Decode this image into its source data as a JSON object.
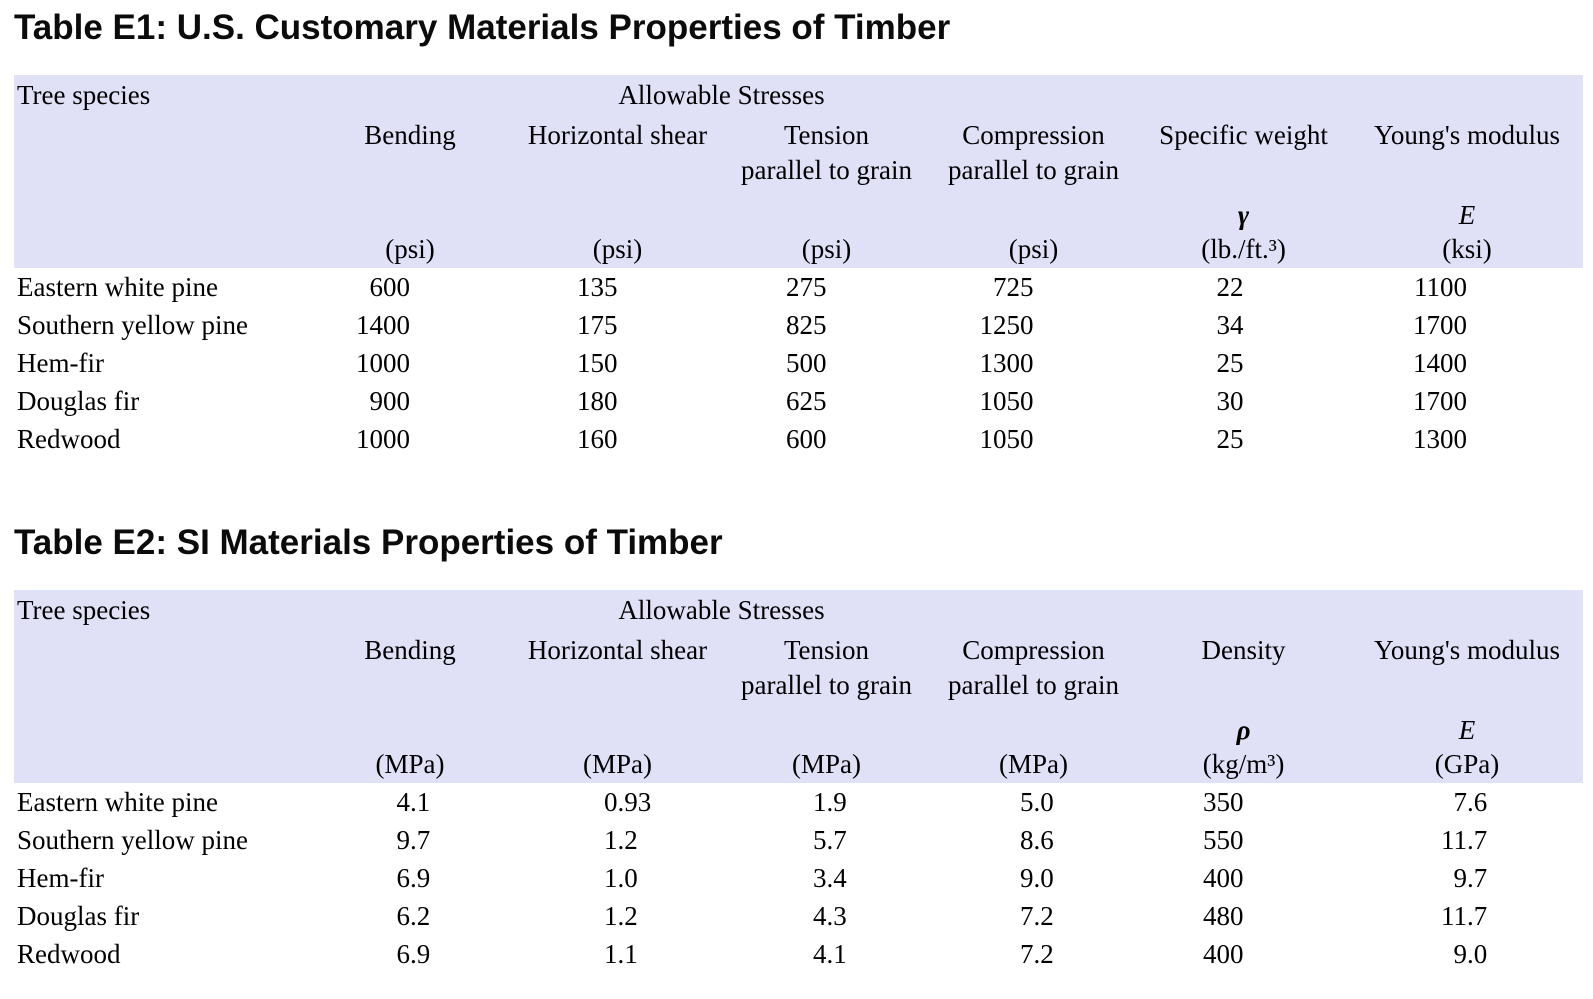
{
  "page": {
    "band_color": "#e0e0f7",
    "text_color": "#000000"
  },
  "tables": [
    {
      "title": "Table E1: U.S. Customary Materials Properties of Timber",
      "species_header": "Tree species",
      "group_header": "Allowable Stresses",
      "columns": [
        {
          "label": "Bending",
          "sub": "",
          "symbol": "",
          "symbol_kind": "",
          "unit": "(psi)"
        },
        {
          "label": "Horizontal shear",
          "sub": "",
          "symbol": "",
          "symbol_kind": "",
          "unit": "(psi)"
        },
        {
          "label": "Tension",
          "sub": "parallel to grain",
          "symbol": "",
          "symbol_kind": "",
          "unit": "(psi)"
        },
        {
          "label": "Compression",
          "sub": "parallel to grain",
          "symbol": "",
          "symbol_kind": "",
          "unit": "(psi)"
        },
        {
          "label": "Specific weight",
          "sub": "",
          "symbol": "γ",
          "symbol_kind": "gamma",
          "unit": "(lb./ft.³)"
        },
        {
          "label": "Young's modulus",
          "sub": "",
          "symbol": "E",
          "symbol_kind": "e",
          "unit": "(ksi)"
        }
      ],
      "rows": [
        {
          "species": "Eastern white pine",
          "values": [
            "600",
            "135",
            "275",
            "725",
            "22",
            "1100"
          ]
        },
        {
          "species": "Southern yellow pine",
          "values": [
            "1400",
            "175",
            "825",
            "1250",
            "34",
            "1700"
          ]
        },
        {
          "species": "Hem-fir",
          "values": [
            "1000",
            "150",
            "500",
            "1300",
            "25",
            "1400"
          ]
        },
        {
          "species": "Douglas fir",
          "values": [
            "900",
            "180",
            "625",
            "1050",
            "30",
            "1700"
          ]
        },
        {
          "species": "Redwood",
          "values": [
            "1000",
            "160",
            "600",
            "1050",
            "25",
            "1300"
          ]
        }
      ]
    },
    {
      "title": "Table E2: SI Materials Properties of Timber",
      "species_header": "Tree species",
      "group_header": "Allowable Stresses",
      "columns": [
        {
          "label": "Bending",
          "sub": "",
          "symbol": "",
          "symbol_kind": "",
          "unit": "(MPa)"
        },
        {
          "label": "Horizontal shear",
          "sub": "",
          "symbol": "",
          "symbol_kind": "",
          "unit": "(MPa)"
        },
        {
          "label": "Tension",
          "sub": "parallel to grain",
          "symbol": "",
          "symbol_kind": "",
          "unit": "(MPa)"
        },
        {
          "label": "Compression",
          "sub": "parallel to grain",
          "symbol": "",
          "symbol_kind": "",
          "unit": "(MPa)"
        },
        {
          "label": "Density",
          "sub": "",
          "symbol": "ρ",
          "symbol_kind": "gamma",
          "unit": "(kg/m³)"
        },
        {
          "label": "Young's modulus",
          "sub": "",
          "symbol": "E",
          "symbol_kind": "e",
          "unit": "(GPa)"
        }
      ],
      "rows": [
        {
          "species": "Eastern white pine",
          "values": [
            "4.1",
            "0.93",
            "1.9",
            "5.0",
            "350",
            "7.6"
          ]
        },
        {
          "species": "Southern yellow pine",
          "values": [
            "9.7",
            "1.2",
            "5.7",
            "8.6",
            "550",
            "11.7"
          ]
        },
        {
          "species": "Hem-fir",
          "values": [
            "6.9",
            "1.0",
            "3.4",
            "9.0",
            "400",
            "9.7"
          ]
        },
        {
          "species": "Douglas fir",
          "values": [
            "6.2",
            "1.2",
            "4.3",
            "7.2",
            "480",
            "11.7"
          ]
        },
        {
          "species": "Redwood",
          "values": [
            "6.9",
            "1.1",
            "4.1",
            "7.2",
            "400",
            "9.0"
          ]
        }
      ]
    }
  ]
}
